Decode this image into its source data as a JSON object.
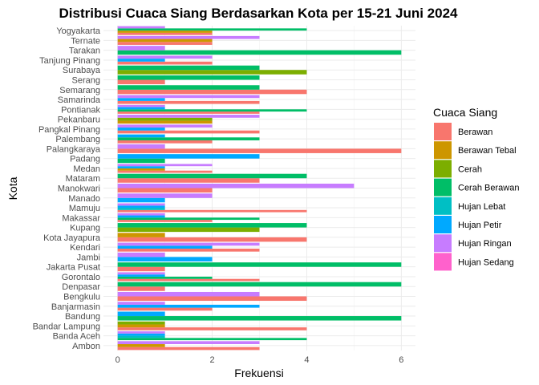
{
  "chart_data": {
    "type": "bar",
    "orientation": "horizontal",
    "barmode": "dodge",
    "title": "Distribusi Cuaca Siang Berdasarkan Kota per 15-21 Juni 2024",
    "xlabel": "Frekuensi",
    "ylabel": "Kota",
    "xlim": [
      -0.3,
      6.3
    ],
    "xticks": [
      0,
      2,
      4,
      6
    ],
    "grid": true,
    "legend": {
      "title": "Cuaca Siang",
      "position": "right"
    },
    "categories": [
      "Ambon",
      "Banda Aceh",
      "Bandar Lampung",
      "Bandung",
      "Banjarmasin",
      "Bengkulu",
      "Denpasar",
      "Gorontalo",
      "Jakarta Pusat",
      "Jambi",
      "Kendari",
      "Kota Jayapura",
      "Kupang",
      "Makassar",
      "Mamuju",
      "Manado",
      "Manokwari",
      "Mataram",
      "Medan",
      "Padang",
      "Palangkaraya",
      "Palembang",
      "Pangkal Pinang",
      "Pekanbaru",
      "Pontianak",
      "Samarinda",
      "Semarang",
      "Serang",
      "Surabaya",
      "Tanjung Pinang",
      "Tarakan",
      "Ternate",
      "Yogyakarta"
    ],
    "series": [
      {
        "name": "Berawan",
        "color": "#F8766D",
        "values": [
          3,
          0,
          4,
          0,
          2,
          4,
          1,
          3,
          1,
          0,
          3,
          4,
          0,
          2,
          4,
          0,
          2,
          3,
          2,
          0,
          6,
          2,
          3,
          0,
          3,
          3,
          4,
          1,
          0,
          2,
          0,
          2,
          2
        ]
      },
      {
        "name": "Berawan Tebal",
        "color": "#CD9600",
        "values": [
          1,
          0,
          1,
          0,
          0,
          0,
          0,
          0,
          0,
          0,
          0,
          1,
          0,
          0,
          0,
          0,
          0,
          0,
          1,
          0,
          0,
          0,
          0,
          2,
          0,
          0,
          0,
          0,
          0,
          0,
          0,
          2,
          2
        ]
      },
      {
        "name": "Cerah",
        "color": "#7CAE00",
        "values": [
          0,
          0,
          1,
          0,
          0,
          0,
          0,
          0,
          0,
          0,
          0,
          0,
          3,
          0,
          0,
          0,
          0,
          0,
          0,
          0,
          0,
          0,
          0,
          2,
          0,
          0,
          0,
          0,
          4,
          0,
          0,
          0,
          0
        ]
      },
      {
        "name": "Cerah Berawan",
        "color": "#00BE67",
        "values": [
          0,
          4,
          0,
          6,
          0,
          0,
          6,
          2,
          6,
          0,
          0,
          0,
          4,
          3,
          0,
          0,
          0,
          4,
          0,
          1,
          0,
          3,
          0,
          0,
          4,
          0,
          3,
          3,
          3,
          0,
          6,
          0,
          4
        ]
      },
      {
        "name": "Hujan Lebat",
        "color": "#00BFC4",
        "values": [
          0,
          1,
          0,
          0,
          0,
          0,
          0,
          0,
          0,
          0,
          0,
          0,
          0,
          0,
          1,
          0,
          0,
          0,
          0,
          0,
          0,
          0,
          0,
          0,
          0,
          0,
          0,
          0,
          0,
          0,
          0,
          0,
          0
        ]
      },
      {
        "name": "Hujan Petir",
        "color": "#00A9FF",
        "values": [
          0,
          1,
          0,
          1,
          3,
          0,
          0,
          1,
          0,
          2,
          2,
          0,
          0,
          1,
          1,
          1,
          0,
          0,
          1,
          3,
          0,
          1,
          1,
          0,
          1,
          1,
          0,
          0,
          0,
          1,
          0,
          0,
          0
        ]
      },
      {
        "name": "Hujan Ringan",
        "color": "#C77CFF",
        "values": [
          3,
          1,
          0,
          0,
          1,
          3,
          0,
          1,
          0,
          1,
          3,
          0,
          0,
          1,
          1,
          2,
          5,
          0,
          2,
          0,
          1,
          0,
          2,
          3,
          1,
          3,
          0,
          0,
          0,
          2,
          1,
          3,
          1
        ]
      },
      {
        "name": "Hujan Sedang",
        "color": "#FF61CC",
        "values": [
          0,
          0,
          0,
          0,
          0,
          0,
          0,
          0,
          0,
          0,
          0,
          0,
          0,
          0,
          0,
          0,
          0,
          0,
          0,
          0,
          0,
          0,
          0,
          0,
          0,
          0,
          0,
          0,
          0,
          0,
          0,
          0,
          0
        ]
      }
    ]
  }
}
